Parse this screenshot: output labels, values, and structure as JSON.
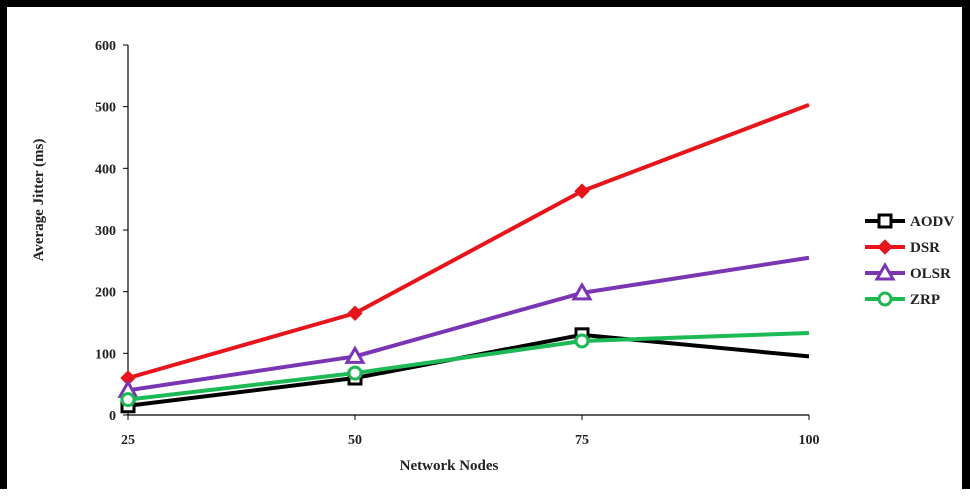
{
  "chart_data": {
    "type": "line",
    "title": "",
    "xlabel": "Network Nodes",
    "ylabel": "Average Jitter (ms)",
    "categories": [
      "25",
      "50",
      "75",
      "100"
    ],
    "x": [
      25,
      50,
      75,
      100
    ],
    "ylim": [
      0,
      600
    ],
    "yticks": [
      "0",
      "100",
      "200",
      "300",
      "400",
      "500",
      "600"
    ],
    "grid": false,
    "legend_position": "right",
    "series": [
      {
        "name": "AODV",
        "color": "#000000",
        "marker": "square",
        "values": [
          15,
          60,
          130,
          95
        ]
      },
      {
        "name": "DSR",
        "color": "#e8141c",
        "marker": "diamond",
        "values": [
          60,
          165,
          363,
          503
        ]
      },
      {
        "name": "OLSR",
        "color": "#7a35b5",
        "marker": "triangle",
        "values": [
          40,
          95,
          198,
          255
        ]
      },
      {
        "name": "ZRP",
        "color": "#1db954",
        "marker": "circle",
        "values": [
          25,
          68,
          120,
          133
        ]
      }
    ]
  }
}
